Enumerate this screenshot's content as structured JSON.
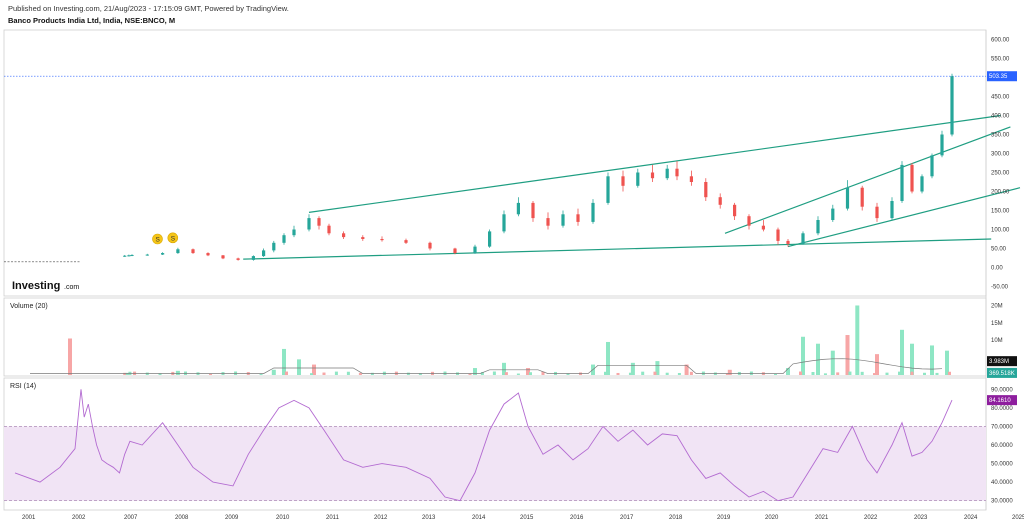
{
  "header": {
    "published": "Published on Investing.com, 21/Aug/2023 - 17:15:09 GMT, Powered by TradingView.",
    "instrument": "Banco Products India Ltd, India, NSE:BNCO, M"
  },
  "logo": {
    "brand": "Investing",
    "suffix": ".com"
  },
  "colors": {
    "up": "#26a69a",
    "down": "#ef5350",
    "trend": "#1f9e82",
    "volume_up": "#8ee6c4",
    "volume_down": "#f7a6a6",
    "rsi_line": "#b36bd1",
    "rsi_band": "#f1e4f5",
    "price_tag": "#2962ff",
    "rsi_tag": "#8e1e9e",
    "vol_tag_dark": "#111111",
    "vol_tag_green": "#26a69a"
  },
  "panels": {
    "volume_label": "Volume (20)",
    "rsi_label": "RSI (14)"
  },
  "price_axis_ticks": [
    "600.00",
    "550.00",
    "500.00",
    "450.00",
    "400.00",
    "350.00",
    "300.00",
    "250.00",
    "200.00",
    "150.00",
    "100.00",
    "50.00",
    "0.00",
    "-50.00"
  ],
  "volume_axis_ticks": [
    "20M",
    "15M",
    "10M"
  ],
  "rsi_axis_ticks": [
    "90.0000",
    "80.0000",
    "70.0000",
    "60.0000",
    "50.0000",
    "40.0000",
    "30.0000"
  ],
  "time_axis_ticks": [
    "2001",
    "2002",
    "2007",
    "2008",
    "2009",
    "2010",
    "2011",
    "2012",
    "2013",
    "2014",
    "2015",
    "2016",
    "2017",
    "2018",
    "2019",
    "2020",
    "2021",
    "2022",
    "2023",
    "2024",
    "2025"
  ],
  "last_price_tag": "503.35",
  "volume_tags": {
    "ma": "3.983M",
    "last": "369.518K"
  },
  "rsi_tag": "84.1610",
  "markers": [
    "S",
    "S"
  ],
  "chart_data": {
    "type": "candlestick",
    "price_ylim": [
      -75,
      625
    ],
    "last_price": 503.35,
    "bars": [
      {
        "t": 2006.3,
        "o": 30,
        "h": 33,
        "l": 28,
        "c": 31
      },
      {
        "t": 2006.7,
        "o": 31,
        "h": 34,
        "l": 29,
        "c": 32
      },
      {
        "t": 2007.0,
        "o": 32,
        "h": 35,
        "l": 30,
        "c": 33
      },
      {
        "t": 2007.3,
        "o": 33,
        "h": 36,
        "l": 31,
        "c": 34
      },
      {
        "t": 2007.6,
        "o": 34,
        "h": 40,
        "l": 33,
        "c": 38
      },
      {
        "t": 2007.9,
        "o": 38,
        "h": 52,
        "l": 36,
        "c": 48
      },
      {
        "t": 2008.2,
        "o": 48,
        "h": 50,
        "l": 36,
        "c": 38
      },
      {
        "t": 2008.5,
        "o": 38,
        "h": 40,
        "l": 30,
        "c": 32
      },
      {
        "t": 2008.8,
        "o": 32,
        "h": 33,
        "l": 22,
        "c": 24
      },
      {
        "t": 2009.1,
        "o": 24,
        "h": 26,
        "l": 18,
        "c": 20
      },
      {
        "t": 2009.4,
        "o": 20,
        "h": 32,
        "l": 18,
        "c": 30
      },
      {
        "t": 2009.6,
        "o": 30,
        "h": 50,
        "l": 28,
        "c": 45
      },
      {
        "t": 2009.8,
        "o": 45,
        "h": 70,
        "l": 40,
        "c": 65
      },
      {
        "t": 2010.0,
        "o": 65,
        "h": 90,
        "l": 60,
        "c": 85
      },
      {
        "t": 2010.2,
        "o": 85,
        "h": 110,
        "l": 80,
        "c": 100
      },
      {
        "t": 2010.5,
        "o": 100,
        "h": 140,
        "l": 95,
        "c": 130
      },
      {
        "t": 2010.7,
        "o": 130,
        "h": 135,
        "l": 100,
        "c": 110
      },
      {
        "t": 2010.9,
        "o": 110,
        "h": 115,
        "l": 85,
        "c": 90
      },
      {
        "t": 2011.2,
        "o": 90,
        "h": 95,
        "l": 75,
        "c": 80
      },
      {
        "t": 2011.6,
        "o": 80,
        "h": 85,
        "l": 70,
        "c": 75
      },
      {
        "t": 2012.0,
        "o": 75,
        "h": 82,
        "l": 68,
        "c": 72
      },
      {
        "t": 2012.5,
        "o": 72,
        "h": 76,
        "l": 62,
        "c": 65
      },
      {
        "t": 2013.0,
        "o": 65,
        "h": 68,
        "l": 45,
        "c": 50
      },
      {
        "t": 2013.5,
        "o": 50,
        "h": 52,
        "l": 35,
        "c": 38
      },
      {
        "t": 2013.9,
        "o": 38,
        "h": 60,
        "l": 36,
        "c": 55
      },
      {
        "t": 2014.2,
        "o": 55,
        "h": 100,
        "l": 52,
        "c": 95
      },
      {
        "t": 2014.5,
        "o": 95,
        "h": 150,
        "l": 90,
        "c": 140
      },
      {
        "t": 2014.8,
        "o": 140,
        "h": 185,
        "l": 135,
        "c": 170
      },
      {
        "t": 2015.1,
        "o": 170,
        "h": 175,
        "l": 120,
        "c": 130
      },
      {
        "t": 2015.4,
        "o": 130,
        "h": 145,
        "l": 100,
        "c": 110
      },
      {
        "t": 2015.7,
        "o": 110,
        "h": 150,
        "l": 105,
        "c": 140
      },
      {
        "t": 2016.0,
        "o": 140,
        "h": 155,
        "l": 110,
        "c": 120
      },
      {
        "t": 2016.3,
        "o": 120,
        "h": 180,
        "l": 115,
        "c": 170
      },
      {
        "t": 2016.6,
        "o": 170,
        "h": 250,
        "l": 165,
        "c": 240
      },
      {
        "t": 2016.9,
        "o": 240,
        "h": 255,
        "l": 200,
        "c": 215
      },
      {
        "t": 2017.2,
        "o": 215,
        "h": 260,
        "l": 210,
        "c": 250
      },
      {
        "t": 2017.5,
        "o": 250,
        "h": 270,
        "l": 225,
        "c": 235
      },
      {
        "t": 2017.8,
        "o": 235,
        "h": 270,
        "l": 230,
        "c": 260
      },
      {
        "t": 2018.0,
        "o": 260,
        "h": 280,
        "l": 230,
        "c": 240
      },
      {
        "t": 2018.3,
        "o": 240,
        "h": 255,
        "l": 215,
        "c": 225
      },
      {
        "t": 2018.6,
        "o": 225,
        "h": 235,
        "l": 175,
        "c": 185
      },
      {
        "t": 2018.9,
        "o": 185,
        "h": 195,
        "l": 155,
        "c": 165
      },
      {
        "t": 2019.2,
        "o": 165,
        "h": 170,
        "l": 125,
        "c": 135
      },
      {
        "t": 2019.5,
        "o": 135,
        "h": 140,
        "l": 100,
        "c": 110
      },
      {
        "t": 2019.8,
        "o": 110,
        "h": 125,
        "l": 95,
        "c": 100
      },
      {
        "t": 2020.1,
        "o": 100,
        "h": 105,
        "l": 60,
        "c": 70
      },
      {
        "t": 2020.3,
        "o": 70,
        "h": 75,
        "l": 55,
        "c": 62
      },
      {
        "t": 2020.6,
        "o": 62,
        "h": 95,
        "l": 60,
        "c": 90
      },
      {
        "t": 2020.9,
        "o": 90,
        "h": 135,
        "l": 85,
        "c": 125
      },
      {
        "t": 2021.2,
        "o": 125,
        "h": 165,
        "l": 120,
        "c": 155
      },
      {
        "t": 2021.5,
        "o": 155,
        "h": 230,
        "l": 150,
        "c": 210
      },
      {
        "t": 2021.8,
        "o": 210,
        "h": 215,
        "l": 150,
        "c": 160
      },
      {
        "t": 2022.1,
        "o": 160,
        "h": 170,
        "l": 120,
        "c": 130
      },
      {
        "t": 2022.4,
        "o": 130,
        "h": 185,
        "l": 125,
        "c": 175
      },
      {
        "t": 2022.6,
        "o": 175,
        "h": 280,
        "l": 170,
        "c": 270
      },
      {
        "t": 2022.8,
        "o": 270,
        "h": 275,
        "l": 195,
        "c": 200
      },
      {
        "t": 2023.0,
        "o": 200,
        "h": 245,
        "l": 195,
        "c": 240
      },
      {
        "t": 2023.2,
        "o": 240,
        "h": 300,
        "l": 235,
        "c": 295
      },
      {
        "t": 2023.4,
        "o": 295,
        "h": 360,
        "l": 290,
        "c": 350
      },
      {
        "t": 2023.6,
        "o": 350,
        "h": 510,
        "l": 345,
        "c": 503.35
      }
    ],
    "volume_ylim": [
      0,
      21
    ],
    "volume": [
      {
        "t": 2001.8,
        "v": 10.5,
        "up": false
      },
      {
        "t": 2007.9,
        "v": 1.2,
        "up": true
      },
      {
        "t": 2009.8,
        "v": 1.5,
        "up": true
      },
      {
        "t": 2010.0,
        "v": 7.5,
        "up": true
      },
      {
        "t": 2010.3,
        "v": 4.5,
        "up": true
      },
      {
        "t": 2010.6,
        "v": 3.0,
        "up": false
      },
      {
        "t": 2013.9,
        "v": 2.0,
        "up": true
      },
      {
        "t": 2014.5,
        "v": 3.5,
        "up": true
      },
      {
        "t": 2015.0,
        "v": 2.0,
        "up": false
      },
      {
        "t": 2016.3,
        "v": 3.0,
        "up": true
      },
      {
        "t": 2016.6,
        "v": 9.5,
        "up": true
      },
      {
        "t": 2017.1,
        "v": 3.5,
        "up": true
      },
      {
        "t": 2017.6,
        "v": 4.0,
        "up": true
      },
      {
        "t": 2018.2,
        "v": 3.0,
        "up": false
      },
      {
        "t": 2019.1,
        "v": 1.5,
        "up": false
      },
      {
        "t": 2020.3,
        "v": 2.0,
        "up": true
      },
      {
        "t": 2020.6,
        "v": 11.0,
        "up": true
      },
      {
        "t": 2020.9,
        "v": 9.0,
        "up": true
      },
      {
        "t": 2021.2,
        "v": 7.0,
        "up": true
      },
      {
        "t": 2021.5,
        "v": 11.5,
        "up": false
      },
      {
        "t": 2021.7,
        "v": 20.0,
        "up": true
      },
      {
        "t": 2022.1,
        "v": 6.0,
        "up": false
      },
      {
        "t": 2022.6,
        "v": 13.0,
        "up": true
      },
      {
        "t": 2022.8,
        "v": 9.0,
        "up": true
      },
      {
        "t": 2023.2,
        "v": 8.5,
        "up": true
      },
      {
        "t": 2023.5,
        "v": 7.0,
        "up": true
      }
    ],
    "volume_ma": 3.983,
    "rsi_ylim": [
      25,
      95
    ],
    "rsi": [
      {
        "t": 2000.7,
        "v": 45
      },
      {
        "t": 2001.2,
        "v": 40
      },
      {
        "t": 2001.6,
        "v": 48
      },
      {
        "t": 2001.9,
        "v": 58
      },
      {
        "t": 2002.1,
        "v": 90
      },
      {
        "t": 2002.4,
        "v": 75
      },
      {
        "t": 2002.8,
        "v": 82
      },
      {
        "t": 2003.2,
        "v": 70
      },
      {
        "t": 2003.6,
        "v": 60
      },
      {
        "t": 2004.1,
        "v": 52
      },
      {
        "t": 2004.6,
        "v": 50
      },
      {
        "t": 2005.2,
        "v": 48
      },
      {
        "t": 2005.8,
        "v": 45
      },
      {
        "t": 2006.3,
        "v": 55
      },
      {
        "t": 2006.8,
        "v": 62
      },
      {
        "t": 2007.2,
        "v": 60
      },
      {
        "t": 2007.6,
        "v": 72
      },
      {
        "t": 2007.9,
        "v": 60
      },
      {
        "t": 2008.2,
        "v": 48
      },
      {
        "t": 2008.6,
        "v": 40
      },
      {
        "t": 2009.0,
        "v": 38
      },
      {
        "t": 2009.3,
        "v": 55
      },
      {
        "t": 2009.6,
        "v": 68
      },
      {
        "t": 2009.9,
        "v": 80
      },
      {
        "t": 2010.2,
        "v": 84
      },
      {
        "t": 2010.5,
        "v": 80
      },
      {
        "t": 2010.8,
        "v": 68
      },
      {
        "t": 2011.2,
        "v": 52
      },
      {
        "t": 2011.6,
        "v": 48
      },
      {
        "t": 2012.0,
        "v": 50
      },
      {
        "t": 2012.5,
        "v": 48
      },
      {
        "t": 2013.0,
        "v": 42
      },
      {
        "t": 2013.3,
        "v": 32
      },
      {
        "t": 2013.6,
        "v": 30
      },
      {
        "t": 2013.9,
        "v": 45
      },
      {
        "t": 2014.2,
        "v": 68
      },
      {
        "t": 2014.5,
        "v": 82
      },
      {
        "t": 2014.8,
        "v": 88
      },
      {
        "t": 2015.0,
        "v": 70
      },
      {
        "t": 2015.3,
        "v": 55
      },
      {
        "t": 2015.6,
        "v": 60
      },
      {
        "t": 2015.9,
        "v": 52
      },
      {
        "t": 2016.2,
        "v": 58
      },
      {
        "t": 2016.5,
        "v": 70
      },
      {
        "t": 2016.8,
        "v": 62
      },
      {
        "t": 2017.1,
        "v": 68
      },
      {
        "t": 2017.4,
        "v": 60
      },
      {
        "t": 2017.7,
        "v": 66
      },
      {
        "t": 2018.0,
        "v": 65
      },
      {
        "t": 2018.3,
        "v": 52
      },
      {
        "t": 2018.6,
        "v": 42
      },
      {
        "t": 2018.9,
        "v": 45
      },
      {
        "t": 2019.2,
        "v": 38
      },
      {
        "t": 2019.5,
        "v": 32
      },
      {
        "t": 2019.8,
        "v": 35
      },
      {
        "t": 2020.1,
        "v": 30
      },
      {
        "t": 2020.4,
        "v": 32
      },
      {
        "t": 2020.7,
        "v": 45
      },
      {
        "t": 2021.0,
        "v": 58
      },
      {
        "t": 2021.3,
        "v": 56
      },
      {
        "t": 2021.6,
        "v": 70
      },
      {
        "t": 2021.9,
        "v": 52
      },
      {
        "t": 2022.1,
        "v": 45
      },
      {
        "t": 2022.4,
        "v": 60
      },
      {
        "t": 2022.6,
        "v": 72
      },
      {
        "t": 2022.8,
        "v": 54
      },
      {
        "t": 2023.0,
        "v": 56
      },
      {
        "t": 2023.2,
        "v": 62
      },
      {
        "t": 2023.4,
        "v": 72
      },
      {
        "t": 2023.6,
        "v": 84.161
      }
    ],
    "rsi_levels": [
      70,
      30
    ],
    "trend_lines": [
      {
        "t1": 2010.5,
        "p1": 145,
        "t2": 2024.6,
        "p2": 400
      },
      {
        "t1": 2009.2,
        "p1": 22,
        "t2": 2024.4,
        "p2": 75
      },
      {
        "t1": 2019.0,
        "p1": 90,
        "t2": 2024.8,
        "p2": 370
      },
      {
        "t1": 2020.3,
        "p1": 55,
        "t2": 2025.1,
        "p2": 210
      }
    ],
    "dividend_markers": [
      {
        "t": 2007.5,
        "p": 75
      },
      {
        "t": 2007.8,
        "p": 78
      }
    ]
  }
}
